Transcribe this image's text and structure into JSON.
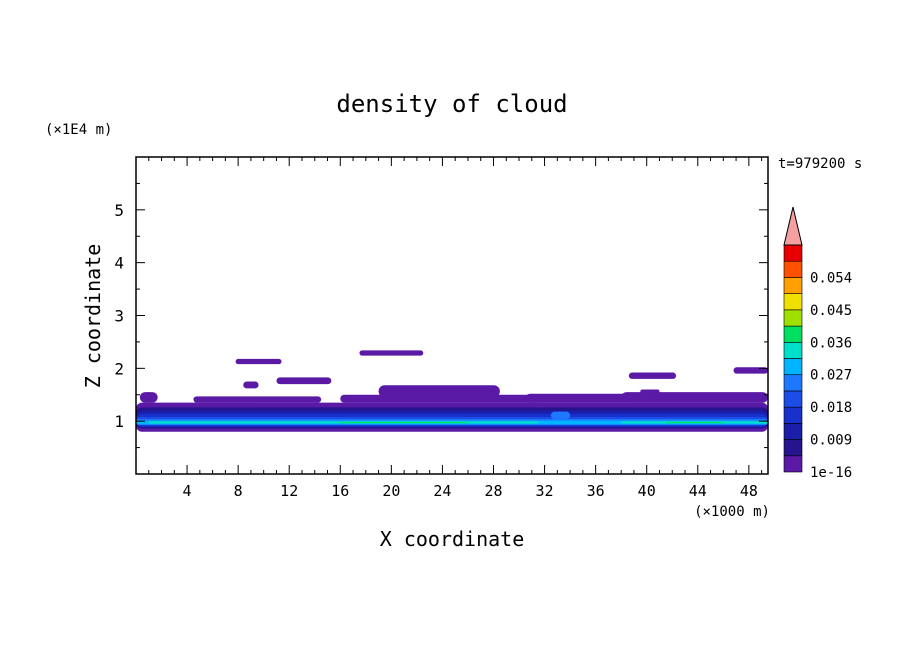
{
  "chart_data": {
    "type": "heatmap",
    "title": "density of cloud",
    "xlabel": "X coordinate",
    "ylabel": "Z coordinate",
    "x_unit": "(×1000 m)",
    "y_unit": "(×1E4 m)",
    "time_label": "t=979200 s",
    "xlim": [
      0,
      49.5
    ],
    "ylim": [
      0,
      6
    ],
    "x_ticks": [
      4,
      8,
      12,
      16,
      20,
      24,
      28,
      32,
      36,
      40,
      44,
      48
    ],
    "y_ticks": [
      1,
      2,
      3,
      4,
      5
    ],
    "colorbar": {
      "labels": [
        "1e-16",
        "0.009",
        "0.018",
        "0.027",
        "0.036",
        "0.045",
        "0.054"
      ],
      "levels": [
        0,
        0.0045,
        0.009,
        0.0135,
        0.018,
        0.0225,
        0.027,
        0.0315,
        0.036,
        0.0405,
        0.045,
        0.0495,
        0.054,
        0.0585
      ],
      "colors": [
        "#5a1aa6",
        "#26138e",
        "#1b1ea8",
        "#1830cc",
        "#1a4ee6",
        "#1e78ff",
        "#00b4ff",
        "#00e0c8",
        "#00e060",
        "#a0e000",
        "#f0e000",
        "#ffa000",
        "#ff5000",
        "#e80000"
      ],
      "over_color": "#f4a0a0"
    },
    "regions": [
      {
        "level": 0,
        "x": [
          0,
          49.5
        ],
        "z": [
          0.8,
          1.35
        ]
      },
      {
        "level": 0,
        "x": [
          0.3,
          1.7
        ],
        "z": [
          1.35,
          1.55
        ]
      },
      {
        "level": 0,
        "x": [
          4.5,
          14.5
        ],
        "z": [
          1.35,
          1.47
        ]
      },
      {
        "level": 0,
        "x": [
          16,
          32
        ],
        "z": [
          1.35,
          1.5
        ]
      },
      {
        "level": 0,
        "x": [
          30.5,
          38.5
        ],
        "z": [
          1.35,
          1.52
        ]
      },
      {
        "level": 0,
        "x": [
          38,
          49.5
        ],
        "z": [
          1.35,
          1.55
        ]
      },
      {
        "level": 0,
        "x": [
          19,
          28.5
        ],
        "z": [
          1.45,
          1.68
        ]
      },
      {
        "level": 0,
        "x": [
          8.4,
          9.6
        ],
        "z": [
          1.62,
          1.75
        ]
      },
      {
        "level": 0,
        "x": [
          11,
          15.3
        ],
        "z": [
          1.7,
          1.83
        ]
      },
      {
        "level": 0,
        "x": [
          38.6,
          42.3
        ],
        "z": [
          1.8,
          1.92
        ]
      },
      {
        "level": 0,
        "x": [
          46.8,
          49.5
        ],
        "z": [
          1.9,
          2.02
        ]
      },
      {
        "level": 0,
        "x": [
          7.8,
          11.4
        ],
        "z": [
          2.08,
          2.18
        ]
      },
      {
        "level": 0,
        "x": [
          17.5,
          22.5
        ],
        "z": [
          2.24,
          2.34
        ]
      },
      {
        "level": 0,
        "x": [
          39.5,
          41
        ],
        "z": [
          1.53,
          1.6
        ]
      },
      {
        "level": 1,
        "x": [
          0,
          49.5
        ],
        "z": [
          0.86,
          1.26
        ]
      },
      {
        "level": 2,
        "x": [
          0,
          49.5
        ],
        "z": [
          0.88,
          1.2
        ]
      },
      {
        "level": 3,
        "x": [
          0,
          49.5
        ],
        "z": [
          0.9,
          1.14
        ]
      },
      {
        "level": 4,
        "x": [
          0,
          49.5
        ],
        "z": [
          0.92,
          1.08
        ]
      },
      {
        "level": 5,
        "x": [
          0,
          49.5
        ],
        "z": [
          0.93,
          1.04
        ]
      },
      {
        "level": 6,
        "x": [
          0,
          49.5
        ],
        "z": [
          0.94,
          1.01
        ]
      },
      {
        "level": 7,
        "x": [
          1,
          31.5
        ],
        "z": [
          0.955,
          0.995
        ]
      },
      {
        "level": 7,
        "x": [
          38,
          49.5
        ],
        "z": [
          0.955,
          0.995
        ]
      },
      {
        "level": 8,
        "x": [
          16,
          26
        ],
        "z": [
          0.96,
          0.985
        ]
      },
      {
        "level": 8,
        "x": [
          41.5,
          46
        ],
        "z": [
          0.96,
          0.985
        ]
      },
      {
        "level": 5,
        "x": [
          32.5,
          34
        ],
        "z": [
          1.04,
          1.18
        ]
      }
    ]
  }
}
